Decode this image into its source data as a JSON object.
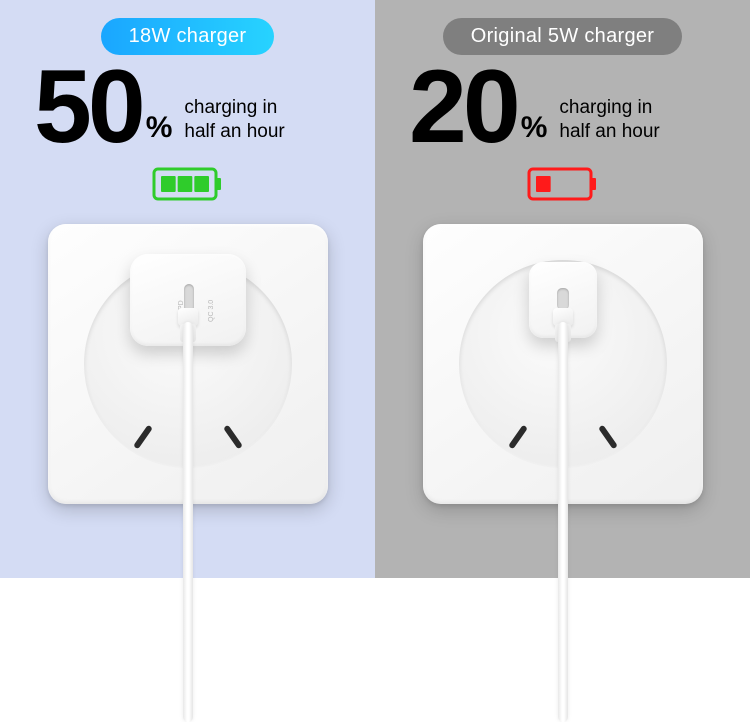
{
  "left": {
    "badge_label": "18W charger",
    "badge_gradient_start": "#1aa6ff",
    "badge_gradient_end": "#27d3ff",
    "panel_bg": "#d4dcf4",
    "number": "50",
    "percent_symbol": "%",
    "sub_line1": "charging in",
    "sub_line2": "half an hour",
    "text_color": "#1a1a1a",
    "battery": {
      "color": "#2fcc2b",
      "fill_percent": 60,
      "segments": 3
    },
    "charger": {
      "type": "large",
      "port_label_1": "PD",
      "port_label_2": "QC 3.0"
    }
  },
  "right": {
    "badge_label": "Original 5W charger",
    "badge_bg": "#7f7f7f",
    "panel_bg": "#b3b3b3",
    "number": "20",
    "percent_symbol": "%",
    "sub_line1": "charging in",
    "sub_line2": "half an hour",
    "text_color": "#1a1a1a",
    "battery": {
      "color": "#ff1a1a",
      "fill_percent": 20,
      "segments": 1
    },
    "charger": {
      "type": "small"
    }
  },
  "battery_shell": {
    "width": 62,
    "height": 30,
    "border_width": 3,
    "tip_width": 5,
    "tip_height": 12
  }
}
